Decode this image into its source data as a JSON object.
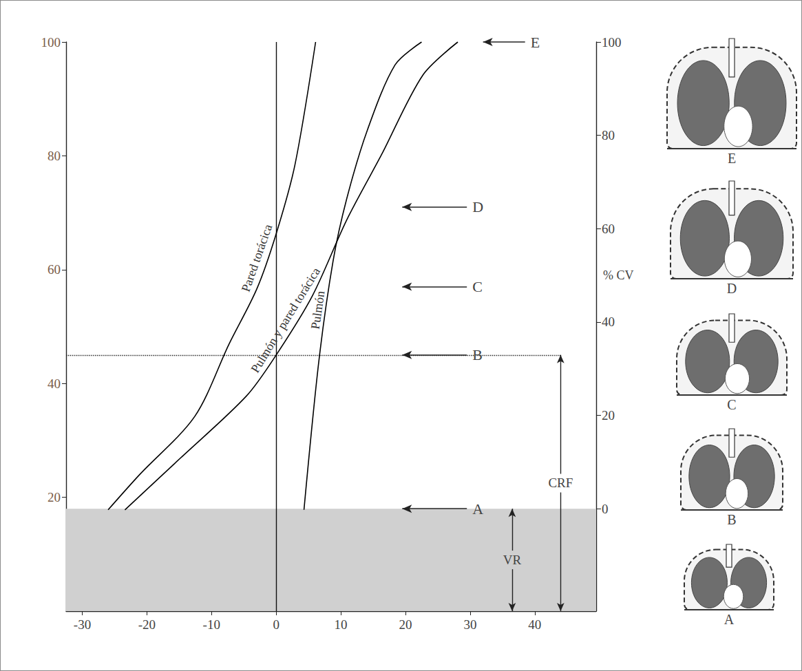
{
  "chart_data": {
    "type": "line",
    "xlim": [
      -32.5,
      49.5
    ],
    "xticks": [
      -30,
      -20,
      -10,
      0,
      10,
      20,
      30,
      40
    ],
    "ylim": [
      0,
      100
    ],
    "yticks": [
      20,
      40,
      60,
      80,
      100
    ],
    "y2lim": [
      -21.95,
      100
    ],
    "y2ticks": [
      0,
      20,
      40,
      60,
      80,
      100
    ],
    "y2label": "% CV",
    "grid": false,
    "series": [
      {
        "name": "Pared torácica",
        "color": "#000000",
        "line_style": "solid",
        "x": [
          -26,
          -21.2,
          -12.6,
          -7.3,
          -3,
          0,
          2.9,
          6.1
        ],
        "values": [
          17.8,
          23.9,
          34.2,
          46.9,
          56.6,
          66.3,
          78.4,
          100
        ]
      },
      {
        "name": "Pulmón y pared torácica",
        "color": "#000000",
        "line_style": "solid",
        "x": [
          -23.4,
          -14.8,
          -4.6,
          0,
          5.6,
          10.9,
          16.3,
          22.7,
          28.1
        ],
        "values": [
          17.8,
          26.9,
          37.8,
          45,
          55.4,
          68.7,
          80.2,
          94.2,
          100
        ]
      },
      {
        "name": "Pulmón",
        "color": "#000000",
        "line_style": "solid",
        "x": [
          4.3,
          6.6,
          8.8,
          10.9,
          14.1,
          18.4,
          22.5
        ],
        "values": [
          17.8,
          43.9,
          61.5,
          72.4,
          84.5,
          96,
          100
        ]
      }
    ],
    "vertical_line": {
      "x": 0
    },
    "shaded": [
      0,
      18
    ],
    "shaded_color": "#d0d0d0",
    "reference_line": {
      "y": 45,
      "x": [
        -32.5,
        44
      ],
      "line_style": "dotted"
    },
    "levels": [
      {
        "label": "E",
        "y": 100,
        "arrow": [
          38.5,
          32
        ]
      },
      {
        "label": "D",
        "y": 71,
        "arrow": [
          29.5,
          19.5
        ]
      },
      {
        "label": "C",
        "y": 57,
        "arrow": [
          29.5,
          19.5
        ]
      },
      {
        "label": "B",
        "y": 45,
        "arrow": [
          29.5,
          19.5
        ]
      },
      {
        "label": "A",
        "y": 18,
        "arrow": [
          29.5,
          19.5
        ]
      }
    ],
    "brackets": [
      {
        "label": "VR",
        "x": 36.5,
        "from": 0,
        "to": 18
      },
      {
        "label": "CRF",
        "x": 44,
        "from": 0,
        "to": 45
      }
    ],
    "panels": [
      "E",
      "D",
      "C",
      "B",
      "A"
    ]
  }
}
